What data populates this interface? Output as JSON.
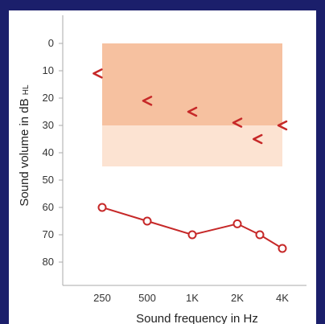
{
  "chart_data": {
    "type": "line",
    "title": "",
    "xlabel": "Sound frequency in Hz",
    "ylabel": "Sound volume in dB",
    "ylabel_unit": "HL",
    "categories": [
      "250",
      "500",
      "1K",
      "2K",
      "4K"
    ],
    "y_ticks": [
      "0",
      "10",
      "20",
      "30",
      "40",
      "50",
      "60",
      "70",
      "80"
    ],
    "ylim": [
      0,
      90
    ],
    "y_inverted": true,
    "grid": false,
    "shaded_regions": [
      {
        "x_from": "250",
        "x_to": "4K",
        "y_from": 0,
        "y_to": 30,
        "color": "#f6c1a0"
      },
      {
        "x_from": "250",
        "x_to": "4K",
        "y_from": 30,
        "y_to": 45,
        "color": "#fce3d2"
      }
    ],
    "series": [
      {
        "marker": "circle",
        "color": "#c62828",
        "points": [
          {
            "x": 0,
            "y": 60
          },
          {
            "x": 1,
            "y": 65
          },
          {
            "x": 2,
            "y": 70
          },
          {
            "x": 3,
            "y": 66
          },
          {
            "x": 3.5,
            "y": 70
          },
          {
            "x": 4,
            "y": 75
          }
        ]
      },
      {
        "marker": "<",
        "color": "#c62828",
        "points": [
          {
            "x": -0.1,
            "y": 11
          },
          {
            "x": 1,
            "y": 21
          },
          {
            "x": 2,
            "y": 25
          },
          {
            "x": 3,
            "y": 29
          },
          {
            "x": 3.45,
            "y": 35
          },
          {
            "x": 4,
            "y": 30
          }
        ]
      }
    ]
  }
}
